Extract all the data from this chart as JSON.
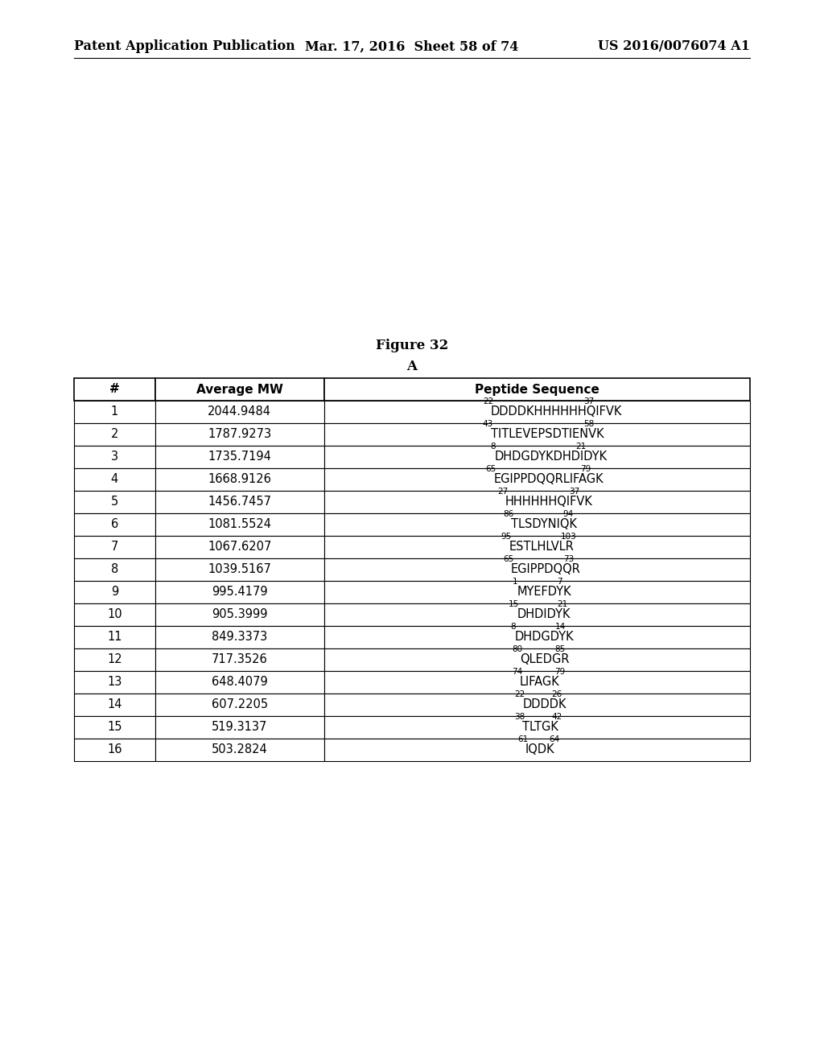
{
  "header_left": "Patent Application Publication",
  "header_mid": "Mar. 17, 2016  Sheet 58 of 74",
  "header_right": "US 2016/0076074 A1",
  "figure_label": "Figure 32",
  "sub_label": "A",
  "columns": [
    "#",
    "Average MW",
    "Peptide Sequence"
  ],
  "rows": [
    [
      "1",
      "2044.9484",
      "22",
      "DDDDKHHHHHHQIFVK",
      "37"
    ],
    [
      "2",
      "1787.9273",
      "43",
      "TITLEVEPSDTIENVK",
      "58"
    ],
    [
      "3",
      "1735.7194",
      "8",
      "DHDGDYKDHDIDYK",
      "21"
    ],
    [
      "4",
      "1668.9126",
      "65",
      "EGIPPDQQRLIFAGK",
      "79"
    ],
    [
      "5",
      "1456.7457",
      "27",
      "HHHHHHQIFVK",
      "37"
    ],
    [
      "6",
      "1081.5524",
      "86",
      "TLSDYNIQK",
      "94"
    ],
    [
      "7",
      "1067.6207",
      "95",
      "ESTLHLVLR",
      "103"
    ],
    [
      "8",
      "1039.5167",
      "65",
      "EGIPPDQQR",
      "73"
    ],
    [
      "9",
      "995.4179",
      "1",
      "MYEFDYK",
      "7"
    ],
    [
      "10",
      "905.3999",
      "15",
      "DHDIDYK",
      "21"
    ],
    [
      "11",
      "849.3373",
      "8",
      "DHDGDYK",
      "14"
    ],
    [
      "12",
      "717.3526",
      "80",
      "QLEDGR",
      "85"
    ],
    [
      "13",
      "648.4079",
      "74",
      "LIFAGK",
      "79"
    ],
    [
      "14",
      "607.2205",
      "22",
      "DDDDK",
      "26"
    ],
    [
      "15",
      "519.3137",
      "38",
      "TLTGK",
      "42"
    ],
    [
      "16",
      "503.2824",
      "61",
      "IQDK",
      "64"
    ]
  ],
  "header_fontsize": 11.5,
  "figure_label_fontsize": 12,
  "table_header_fontsize": 11,
  "table_body_fontsize": 10.5,
  "sup_fontsize": 7.5,
  "background_color": "#ffffff"
}
